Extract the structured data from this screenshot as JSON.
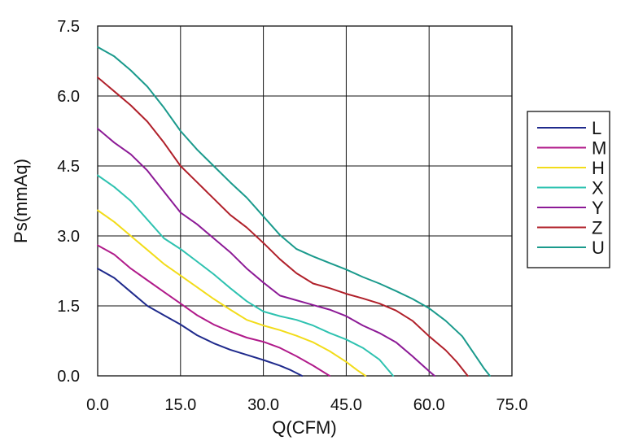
{
  "chart_data": {
    "type": "line",
    "xlabel": "Q(CFM)",
    "ylabel": "Ps(mmAq)",
    "xlim": [
      0,
      75
    ],
    "ylim": [
      0,
      7.5
    ],
    "x_ticks": [
      "0.0",
      "15.0",
      "30.0",
      "45.0",
      "60.0",
      "75.0"
    ],
    "y_ticks": [
      "0.0",
      "1.5",
      "3.0",
      "4.5",
      "6.0",
      "7.5"
    ],
    "grid": true,
    "legend_position": "right",
    "series": [
      {
        "name": "L",
        "color": "#1f2a8c",
        "points": [
          [
            0,
            2.3
          ],
          [
            3,
            2.1
          ],
          [
            6,
            1.8
          ],
          [
            9,
            1.5
          ],
          [
            12,
            1.3
          ],
          [
            15,
            1.1
          ],
          [
            18,
            0.87
          ],
          [
            21,
            0.7
          ],
          [
            24,
            0.56
          ],
          [
            27,
            0.45
          ],
          [
            30,
            0.34
          ],
          [
            33,
            0.22
          ],
          [
            35,
            0.12
          ],
          [
            37,
            0
          ]
        ]
      },
      {
        "name": "M",
        "color": "#b01a8a",
        "points": [
          [
            0,
            2.8
          ],
          [
            3,
            2.6
          ],
          [
            6,
            2.3
          ],
          [
            9,
            2.05
          ],
          [
            12,
            1.8
          ],
          [
            15,
            1.55
          ],
          [
            18,
            1.3
          ],
          [
            21,
            1.1
          ],
          [
            24,
            0.95
          ],
          [
            27,
            0.82
          ],
          [
            30,
            0.73
          ],
          [
            33,
            0.6
          ],
          [
            36,
            0.42
          ],
          [
            39,
            0.22
          ],
          [
            42,
            0
          ]
        ]
      },
      {
        "name": "H",
        "color": "#f2dc1a",
        "points": [
          [
            0,
            3.55
          ],
          [
            3,
            3.3
          ],
          [
            6,
            3.0
          ],
          [
            9,
            2.7
          ],
          [
            12,
            2.4
          ],
          [
            15,
            2.15
          ],
          [
            18,
            1.9
          ],
          [
            21,
            1.65
          ],
          [
            24,
            1.42
          ],
          [
            27,
            1.2
          ],
          [
            30,
            1.08
          ],
          [
            33,
            0.98
          ],
          [
            36,
            0.86
          ],
          [
            39,
            0.72
          ],
          [
            42,
            0.53
          ],
          [
            45,
            0.3
          ],
          [
            47,
            0.12
          ],
          [
            48.5,
            0
          ]
        ]
      },
      {
        "name": "X",
        "color": "#2ec2b0",
        "points": [
          [
            0,
            4.3
          ],
          [
            3,
            4.05
          ],
          [
            6,
            3.75
          ],
          [
            9,
            3.35
          ],
          [
            12,
            2.95
          ],
          [
            15,
            2.72
          ],
          [
            18,
            2.45
          ],
          [
            21,
            2.18
          ],
          [
            24,
            1.88
          ],
          [
            27,
            1.6
          ],
          [
            30,
            1.38
          ],
          [
            33,
            1.28
          ],
          [
            36,
            1.2
          ],
          [
            39,
            1.08
          ],
          [
            42,
            0.92
          ],
          [
            45,
            0.78
          ],
          [
            48,
            0.6
          ],
          [
            51,
            0.35
          ],
          [
            53.5,
            0
          ]
        ]
      },
      {
        "name": "Y",
        "color": "#8c1a96",
        "points": [
          [
            0,
            5.3
          ],
          [
            3,
            5.0
          ],
          [
            6,
            4.75
          ],
          [
            9,
            4.4
          ],
          [
            12,
            3.95
          ],
          [
            15,
            3.5
          ],
          [
            18,
            3.25
          ],
          [
            21,
            2.95
          ],
          [
            24,
            2.65
          ],
          [
            27,
            2.3
          ],
          [
            30,
            2.0
          ],
          [
            33,
            1.72
          ],
          [
            36,
            1.62
          ],
          [
            39,
            1.52
          ],
          [
            42,
            1.42
          ],
          [
            45,
            1.28
          ],
          [
            48,
            1.08
          ],
          [
            51,
            0.92
          ],
          [
            54,
            0.72
          ],
          [
            57,
            0.42
          ],
          [
            60,
            0.1
          ],
          [
            61,
            0
          ]
        ]
      },
      {
        "name": "Z",
        "color": "#b0202a",
        "points": [
          [
            0,
            6.4
          ],
          [
            3,
            6.1
          ],
          [
            6,
            5.8
          ],
          [
            9,
            5.45
          ],
          [
            12,
            5.0
          ],
          [
            15,
            4.5
          ],
          [
            18,
            4.15
          ],
          [
            21,
            3.8
          ],
          [
            24,
            3.45
          ],
          [
            27,
            3.18
          ],
          [
            30,
            2.85
          ],
          [
            33,
            2.5
          ],
          [
            36,
            2.2
          ],
          [
            39,
            1.98
          ],
          [
            42,
            1.88
          ],
          [
            45,
            1.76
          ],
          [
            48,
            1.66
          ],
          [
            51,
            1.55
          ],
          [
            54,
            1.4
          ],
          [
            57,
            1.18
          ],
          [
            60,
            0.85
          ],
          [
            63,
            0.55
          ],
          [
            65,
            0.3
          ],
          [
            67,
            0
          ]
        ]
      },
      {
        "name": "U",
        "color": "#1a9a8c",
        "points": [
          [
            0,
            7.05
          ],
          [
            3,
            6.85
          ],
          [
            6,
            6.55
          ],
          [
            9,
            6.2
          ],
          [
            12,
            5.75
          ],
          [
            15,
            5.25
          ],
          [
            18,
            4.85
          ],
          [
            21,
            4.5
          ],
          [
            24,
            4.15
          ],
          [
            27,
            3.82
          ],
          [
            30,
            3.42
          ],
          [
            33,
            3.02
          ],
          [
            36,
            2.72
          ],
          [
            39,
            2.56
          ],
          [
            42,
            2.42
          ],
          [
            45,
            2.28
          ],
          [
            48,
            2.12
          ],
          [
            51,
            1.98
          ],
          [
            54,
            1.82
          ],
          [
            57,
            1.65
          ],
          [
            60,
            1.45
          ],
          [
            63,
            1.18
          ],
          [
            66,
            0.85
          ],
          [
            68,
            0.5
          ],
          [
            70,
            0.15
          ],
          [
            71,
            0
          ]
        ]
      }
    ]
  }
}
